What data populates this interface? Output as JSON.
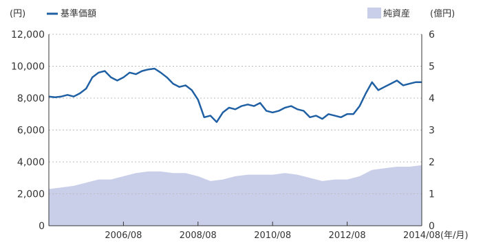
{
  "chart_data": {
    "type": "line",
    "left_unit": "(円)",
    "right_unit": "(億円)",
    "x_unit": "(年/月)",
    "legend": {
      "nav_label": "基準価額",
      "assets_label": "純資産"
    },
    "x_range": [
      "2004/08",
      "2014/08"
    ],
    "x_tick_labels": [
      "2006/08",
      "2008/08",
      "2010/08",
      "2012/08",
      "2014/08"
    ],
    "left_axis": {
      "range": [
        0,
        12000
      ],
      "ticks": [
        "0",
        "2,000",
        "4,000",
        "6,000",
        "8,000",
        "10,000",
        "12,000"
      ]
    },
    "right_axis": {
      "range": [
        0,
        6
      ],
      "ticks": [
        "0",
        "1",
        "2",
        "3",
        "4",
        "5",
        "6"
      ]
    },
    "grid": "horizontal-dashed",
    "colors": {
      "nav": "#1f5fa3",
      "assets": "#c9cfe9",
      "grid": "#bbbbbb",
      "axis": "#333333"
    },
    "series": [
      {
        "name": "基準価額",
        "axis": "left",
        "kind": "line",
        "points": [
          [
            "2004/08",
            8100
          ],
          [
            "2004/10",
            8050
          ],
          [
            "2004/12",
            8100
          ],
          [
            "2005/02",
            8200
          ],
          [
            "2005/04",
            8100
          ],
          [
            "2005/06",
            8300
          ],
          [
            "2005/08",
            8600
          ],
          [
            "2005/10",
            9300
          ],
          [
            "2005/12",
            9600
          ],
          [
            "2006/02",
            9700
          ],
          [
            "2006/04",
            9300
          ],
          [
            "2006/06",
            9100
          ],
          [
            "2006/08",
            9300
          ],
          [
            "2006/10",
            9600
          ],
          [
            "2006/12",
            9500
          ],
          [
            "2007/02",
            9700
          ],
          [
            "2007/04",
            9800
          ],
          [
            "2007/06",
            9850
          ],
          [
            "2007/08",
            9600
          ],
          [
            "2007/10",
            9300
          ],
          [
            "2007/12",
            8900
          ],
          [
            "2008/02",
            8700
          ],
          [
            "2008/04",
            8800
          ],
          [
            "2008/06",
            8500
          ],
          [
            "2008/08",
            7900
          ],
          [
            "2008/10",
            6800
          ],
          [
            "2008/12",
            6900
          ],
          [
            "2009/02",
            6500
          ],
          [
            "2009/04",
            7100
          ],
          [
            "2009/06",
            7400
          ],
          [
            "2009/08",
            7300
          ],
          [
            "2009/10",
            7500
          ],
          [
            "2009/12",
            7600
          ],
          [
            "2010/02",
            7500
          ],
          [
            "2010/04",
            7700
          ],
          [
            "2010/06",
            7200
          ],
          [
            "2010/08",
            7100
          ],
          [
            "2010/10",
            7200
          ],
          [
            "2010/12",
            7400
          ],
          [
            "2011/02",
            7500
          ],
          [
            "2011/04",
            7300
          ],
          [
            "2011/06",
            7200
          ],
          [
            "2011/08",
            6800
          ],
          [
            "2011/10",
            6900
          ],
          [
            "2011/12",
            6700
          ],
          [
            "2012/02",
            7000
          ],
          [
            "2012/04",
            6900
          ],
          [
            "2012/06",
            6800
          ],
          [
            "2012/08",
            7000
          ],
          [
            "2012/10",
            7000
          ],
          [
            "2012/12",
            7500
          ],
          [
            "2013/02",
            8300
          ],
          [
            "2013/04",
            9000
          ],
          [
            "2013/06",
            8500
          ],
          [
            "2013/08",
            8700
          ],
          [
            "2013/10",
            8900
          ],
          [
            "2013/12",
            9100
          ],
          [
            "2014/02",
            8800
          ],
          [
            "2014/04",
            8900
          ],
          [
            "2014/06",
            9000
          ],
          [
            "2014/08",
            9000
          ]
        ]
      },
      {
        "name": "純資産",
        "axis": "right",
        "kind": "area",
        "points": [
          [
            "2004/08",
            1.15
          ],
          [
            "2004/12",
            1.2
          ],
          [
            "2005/04",
            1.25
          ],
          [
            "2005/08",
            1.35
          ],
          [
            "2005/12",
            1.45
          ],
          [
            "2006/04",
            1.45
          ],
          [
            "2006/08",
            1.55
          ],
          [
            "2006/12",
            1.65
          ],
          [
            "2007/04",
            1.7
          ],
          [
            "2007/08",
            1.7
          ],
          [
            "2007/12",
            1.65
          ],
          [
            "2008/04",
            1.65
          ],
          [
            "2008/08",
            1.55
          ],
          [
            "2008/12",
            1.4
          ],
          [
            "2009/04",
            1.45
          ],
          [
            "2009/08",
            1.55
          ],
          [
            "2009/12",
            1.6
          ],
          [
            "2010/04",
            1.6
          ],
          [
            "2010/08",
            1.6
          ],
          [
            "2010/12",
            1.65
          ],
          [
            "2011/04",
            1.6
          ],
          [
            "2011/08",
            1.5
          ],
          [
            "2011/12",
            1.4
          ],
          [
            "2012/04",
            1.45
          ],
          [
            "2012/08",
            1.45
          ],
          [
            "2012/12",
            1.55
          ],
          [
            "2013/04",
            1.75
          ],
          [
            "2013/08",
            1.8
          ],
          [
            "2013/12",
            1.85
          ],
          [
            "2014/04",
            1.85
          ],
          [
            "2014/08",
            1.9
          ]
        ]
      }
    ]
  }
}
